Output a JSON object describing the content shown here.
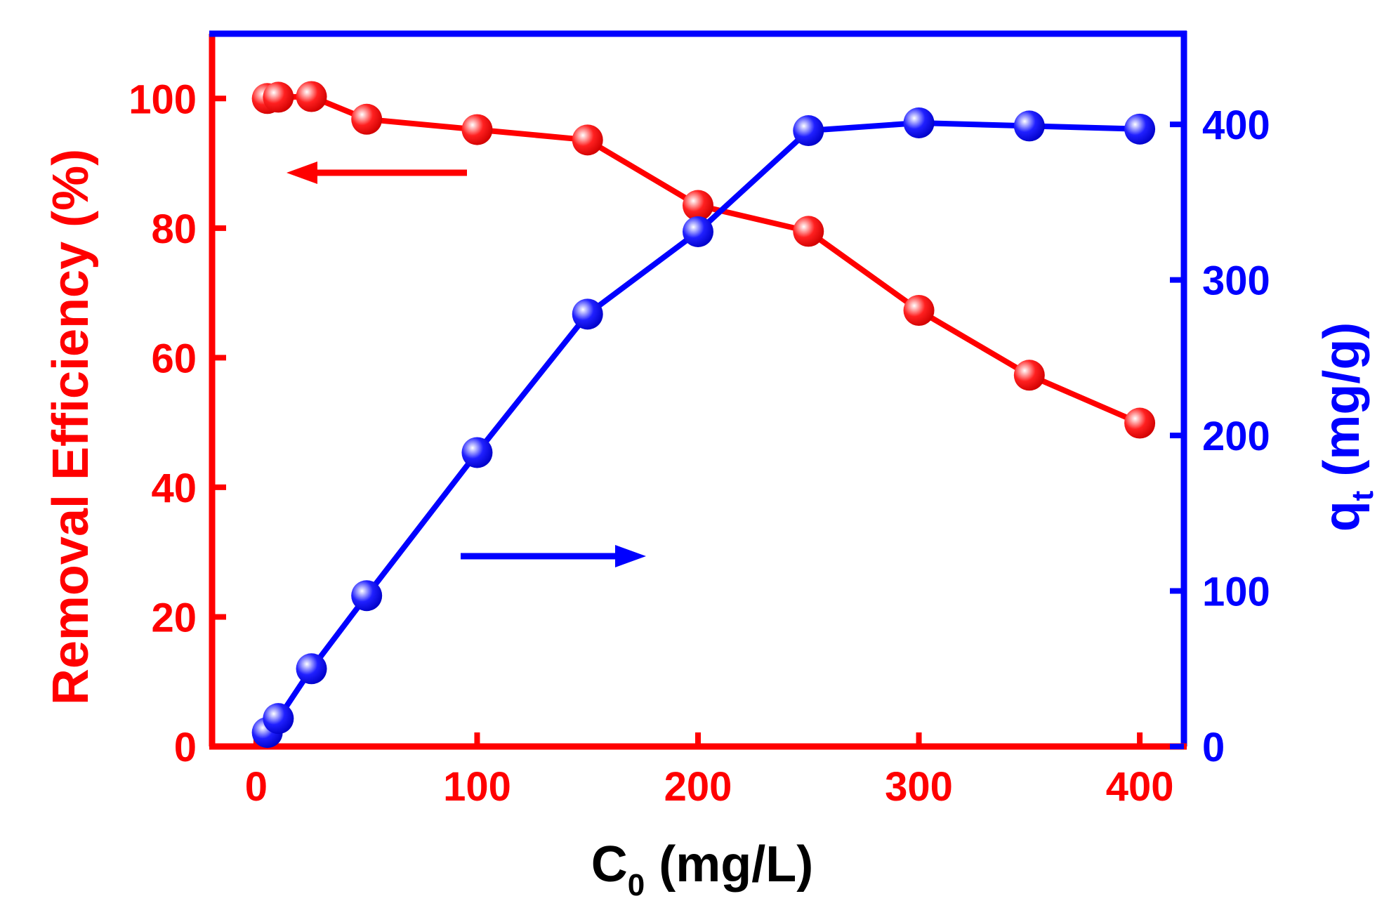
{
  "chart_data": {
    "type": "line",
    "title": "",
    "xlabel": {
      "main": "C",
      "sub": "0",
      "unit": " (mg/L)"
    },
    "ylabel_left": "Removal Efficiency (%)",
    "ylabel_right": {
      "main": "q",
      "sub": "t",
      "unit": " (mg/g)"
    },
    "xlim": [
      -20,
      420
    ],
    "ylim_left": [
      0,
      110
    ],
    "ylim_right": [
      0,
      458.33
    ],
    "x_ticks": [
      0,
      100,
      200,
      300,
      400
    ],
    "x_tick_labels": [
      "0",
      "100",
      "200",
      "300",
      "400"
    ],
    "y_left_ticks": [
      0,
      20,
      40,
      60,
      80,
      100
    ],
    "y_left_tick_labels": [
      "0",
      "20",
      "40",
      "60",
      "80",
      "100"
    ],
    "y_right_ticks": [
      0,
      100,
      200,
      300,
      400
    ],
    "y_right_tick_labels": [
      "0",
      "100",
      "200",
      "300",
      "400"
    ],
    "series": [
      {
        "name": "Removal Efficiency",
        "axis": "left",
        "color": "#ff0000",
        "x": [
          5,
          10,
          25,
          50,
          100,
          150,
          200,
          250,
          300,
          350,
          400
        ],
        "values": [
          100.0,
          100.2,
          100.3,
          96.8,
          95.2,
          93.6,
          83.5,
          79.5,
          67.3,
          57.3,
          49.9
        ]
      },
      {
        "name": "q_t",
        "axis": "right",
        "color": "#0000ff",
        "x": [
          5,
          10,
          25,
          50,
          100,
          150,
          200,
          250,
          300,
          350,
          400
        ],
        "values": [
          9,
          18,
          50,
          97,
          189,
          278,
          331,
          396,
          401,
          399,
          397
        ]
      }
    ],
    "annotations": [
      {
        "type": "arrow",
        "direction": "left",
        "points_to_axis": "left",
        "color": "#ff0000"
      },
      {
        "type": "arrow",
        "direction": "right",
        "points_to_axis": "right",
        "color": "#0000ff"
      }
    ]
  }
}
